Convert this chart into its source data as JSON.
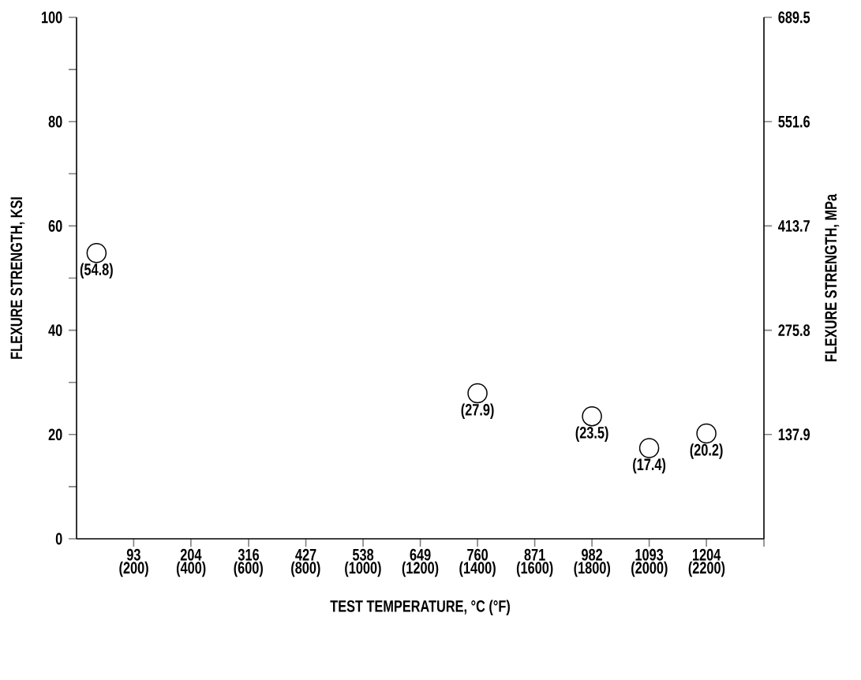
{
  "chart_data": {
    "type": "scatter",
    "xlabel": "TEST TEMPERATURE, °C (°F)",
    "ylabel": "FLEXURE STRENGTH, KSI",
    "y2label": "FLEXURE STRENGTH, MPa",
    "x": [
      21,
      760,
      982,
      1093,
      1204
    ],
    "series": [
      {
        "color": "#000000",
        "values": [
          54.8,
          27.9,
          23.5,
          17.4,
          20.2
        ],
        "value_labels": [
          "(54.8)",
          "(27.9)",
          "(23.5)",
          "(17.4)",
          "(20.2)"
        ]
      }
    ],
    "marker": "circle",
    "line_style": "none",
    "xlim": [
      -17.8,
      1315.6
    ],
    "xticks": [
      93,
      204,
      316,
      427,
      538,
      649,
      760,
      871,
      982,
      1093,
      1204,
      {
        "value": 1315.6,
        "label": null
      }
    ],
    "x2lim": [
      0,
      2400
    ],
    "x2ticks": [
      {
        "value": 200,
        "label": "(200)"
      },
      {
        "value": 400,
        "label": "(400)"
      },
      {
        "value": 600,
        "label": "(600)"
      },
      {
        "value": 800,
        "label": "(800)"
      },
      {
        "value": 1000,
        "label": "(1000)"
      },
      {
        "value": 1200,
        "label": "(1200)"
      },
      {
        "value": 1400,
        "label": "(1400)"
      },
      {
        "value": 1600,
        "label": "(1600)"
      },
      {
        "value": 1800,
        "label": "(1800)"
      },
      {
        "value": 2000,
        "label": "(2000)"
      },
      {
        "value": 2200,
        "label": "(2200)"
      }
    ],
    "ylim": [
      0,
      100
    ],
    "yticks": [
      0,
      {
        "value": 10,
        "label": null
      },
      20,
      {
        "value": 30,
        "label": null
      },
      40,
      {
        "value": 50,
        "label": null
      },
      60,
      {
        "value": 70,
        "label": null
      },
      80,
      {
        "value": 90,
        "label": null
      },
      100
    ],
    "y2lim": [
      0,
      689.5
    ],
    "y2ticks": [
      137.9,
      275.8,
      413.7,
      551.6,
      689.5
    ],
    "grid": false
  }
}
